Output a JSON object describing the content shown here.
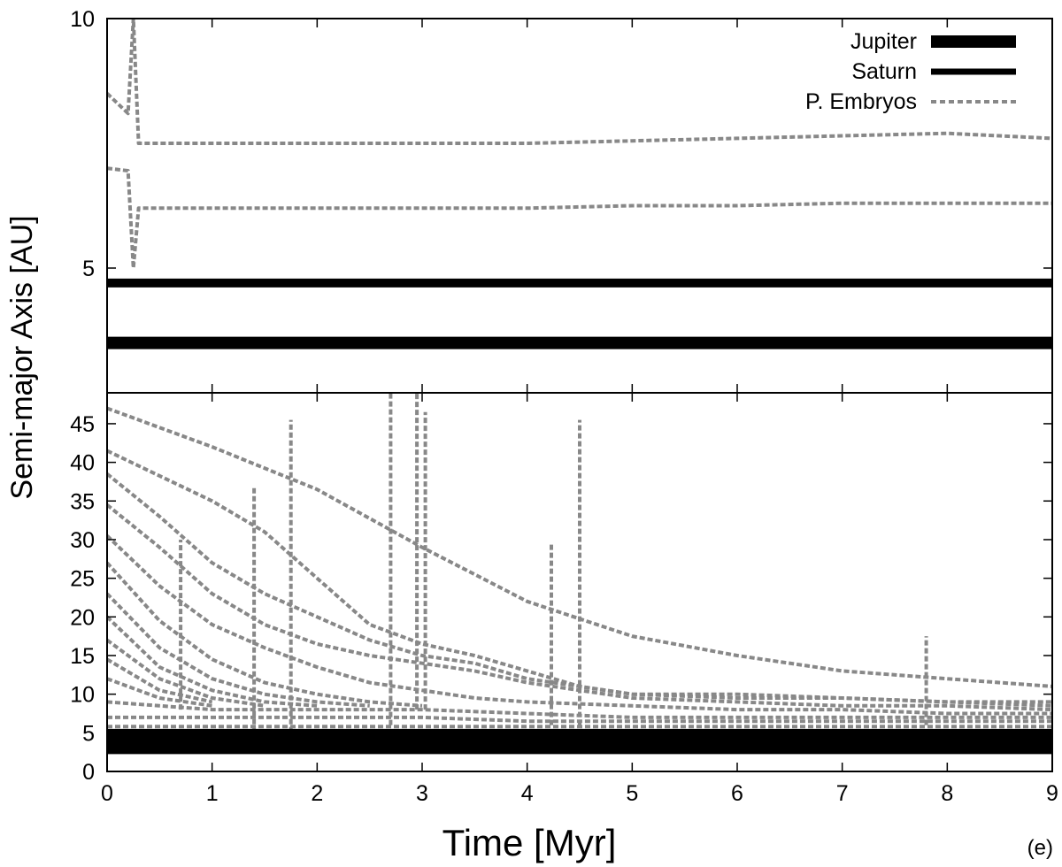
{
  "chart_data": {
    "type": "line",
    "panel_label": "(e)",
    "xlabel": "Time [Myr]",
    "ylabel": "Semi-major Axis [AU]",
    "xlim": [
      0,
      9
    ],
    "xticks": [
      0,
      1,
      2,
      3,
      4,
      5,
      6,
      7,
      8,
      9
    ],
    "legend": {
      "placement": "top-right",
      "entries": [
        {
          "name": "Jupiter",
          "style": "thick-solid",
          "color": "#000000"
        },
        {
          "name": "Saturn",
          "style": "solid",
          "color": "#000000"
        },
        {
          "name": "P. Embryos",
          "style": "dashed",
          "color": "#888888"
        }
      ]
    },
    "panels": [
      {
        "id": "top",
        "ylim": [
          2.5,
          10
        ],
        "yticks": [
          5,
          10
        ],
        "series": [
          {
            "name": "Jupiter",
            "color": "#000000",
            "x": [
              0,
              9
            ],
            "y": [
              3.5,
              3.5
            ]
          },
          {
            "name": "Saturn",
            "color": "#000000",
            "x": [
              0,
              9
            ],
            "y": [
              4.7,
              4.7
            ]
          },
          {
            "name": "P. Embryos",
            "color": "#888888",
            "x": [
              0,
              0.2,
              0.25,
              0.3,
              1,
              2,
              3,
              4,
              5,
              6,
              7,
              8,
              9
            ],
            "y": [
              8.5,
              8.1,
              10,
              7.5,
              7.5,
              7.5,
              7.5,
              7.5,
              7.55,
              7.6,
              7.65,
              7.7,
              7.6
            ]
          },
          {
            "name": "P. Embryos",
            "color": "#888888",
            "x": [
              0,
              0.2,
              0.25,
              0.3,
              1,
              2,
              3,
              4,
              5,
              6,
              7,
              8,
              9
            ],
            "y": [
              7,
              6.95,
              5,
              6.2,
              6.2,
              6.2,
              6.2,
              6.2,
              6.25,
              6.25,
              6.3,
              6.3,
              6.3
            ]
          }
        ]
      },
      {
        "id": "bottom",
        "ylim": [
          0,
          49
        ],
        "yticks": [
          0,
          5,
          10,
          15,
          20,
          25,
          30,
          35,
          40,
          45
        ],
        "series": [
          {
            "name": "Jupiter",
            "color": "#000000",
            "x": [
              0,
              9
            ],
            "y": [
              3.5,
              3.5
            ]
          },
          {
            "name": "Saturn",
            "color": "#000000",
            "x": [
              0,
              9
            ],
            "y": [
              4.7,
              4.7
            ]
          },
          {
            "name": "P. Embryos",
            "color": "#888888",
            "x": [
              0,
              1,
              2,
              3,
              4,
              5,
              6,
              7,
              8,
              9
            ],
            "y": [
              47,
              42,
              36.5,
              29,
              22,
              17.5,
              15,
              13,
              12,
              11
            ]
          },
          {
            "name": "P. Embryos",
            "color": "#888888",
            "x": [
              0,
              1,
              1.5,
              2,
              2.5,
              3,
              3.5,
              4,
              4.5,
              5,
              6,
              7,
              8,
              9
            ],
            "y": [
              41.5,
              35,
              31,
              25,
              19,
              16.5,
              15,
              13,
              11,
              10,
              9.5,
              9.5,
              9,
              9
            ]
          },
          {
            "name": "P. Embryos",
            "color": "#888888",
            "x": [
              0,
              0.5,
              1,
              1.5,
              2,
              2.5,
              3,
              3.5,
              4,
              5,
              6,
              7,
              8,
              9
            ],
            "y": [
              38.5,
              33,
              27,
              23,
              20,
              17,
              15,
              14,
              12,
              10,
              10,
              9.5,
              9,
              8.5
            ]
          },
          {
            "name": "P. Embryos",
            "color": "#888888",
            "x": [
              0,
              0.5,
              1,
              1.5,
              2,
              2.5,
              3,
              3.5,
              4,
              5,
              6,
              7,
              8,
              9
            ],
            "y": [
              34.5,
              29,
              23,
              19,
              16.5,
              15,
              14,
              13,
              11.5,
              9.5,
              9,
              8.5,
              8.5,
              8
            ]
          },
          {
            "name": "P. Embryos",
            "color": "#888888",
            "x": [
              0,
              0.5,
              1,
              1.5,
              2,
              2.5,
              3,
              3.5,
              4,
              5,
              6,
              7,
              8,
              9
            ],
            "y": [
              30.5,
              24,
              19,
              16,
              13.5,
              11.5,
              10.5,
              9.5,
              9,
              8.5,
              8,
              8,
              7.5,
              7.5
            ]
          },
          {
            "name": "P. Embryos",
            "color": "#888888",
            "x": [
              0,
              0.5,
              1,
              1.5,
              2,
              2.5,
              3
            ],
            "y": [
              27,
              19.5,
              14.5,
              11.5,
              10,
              9,
              8.5
            ]
          },
          {
            "name": "P. Embryos",
            "color": "#888888",
            "x": [
              0,
              0.5,
              1,
              1.5,
              2,
              2.5
            ],
            "y": [
              23,
              16,
              12,
              10,
              9,
              8.5
            ]
          },
          {
            "name": "P. Embryos",
            "color": "#888888",
            "x": [
              0,
              0.5,
              1,
              1.5,
              2
            ],
            "y": [
              20,
              13.5,
              10.5,
              9,
              8.5
            ]
          },
          {
            "name": "P. Embryos",
            "color": "#888888",
            "x": [
              0,
              0.5,
              1,
              1.5
            ],
            "y": [
              17,
              12,
              9.5,
              8.5
            ]
          },
          {
            "name": "P. Embryos",
            "color": "#888888",
            "x": [
              0,
              0.5,
              1
            ],
            "y": [
              14.5,
              10.5,
              9
            ]
          },
          {
            "name": "P. Embryos",
            "color": "#888888",
            "x": [
              0,
              0.5,
              1
            ],
            "y": [
              12,
              9.5,
              8.5
            ]
          },
          {
            "name": "P. Embryos",
            "color": "#888888",
            "x": [
              0,
              0.5,
              1,
              2,
              3,
              4,
              5,
              6,
              7,
              8,
              9
            ],
            "y": [
              9,
              8.5,
              8,
              8,
              8,
              7.5,
              7,
              7,
              7,
              7,
              7
            ]
          },
          {
            "name": "P. Embryos",
            "color": "#888888",
            "x": [
              0,
              1,
              2,
              3,
              4,
              5,
              6,
              7,
              8,
              9
            ],
            "y": [
              7,
              7,
              7,
              7,
              6.5,
              6.5,
              6.5,
              6.5,
              6.5,
              6.5
            ]
          },
          {
            "name": "P. Embryos",
            "color": "#888888",
            "x": [
              0,
              9
            ],
            "y": [
              5.8,
              5.8
            ]
          },
          {
            "name": "P. Embryos",
            "color": "#888888",
            "x": [
              0.7,
              0.7
            ],
            "y": [
              8,
              30
            ]
          },
          {
            "name": "P. Embryos",
            "color": "#888888",
            "x": [
              1.4,
              1.4
            ],
            "y": [
              3,
              37
            ]
          },
          {
            "name": "P. Embryos",
            "color": "#888888",
            "x": [
              1.75,
              1.75
            ],
            "y": [
              3,
              45.5
            ]
          },
          {
            "name": "P. Embryos",
            "color": "#888888",
            "x": [
              2.7,
              2.7
            ],
            "y": [
              6,
              49
            ]
          },
          {
            "name": "P. Embryos",
            "color": "#888888",
            "x": [
              2.95,
              2.95
            ],
            "y": [
              8,
              49
            ]
          },
          {
            "name": "P. Embryos",
            "color": "#888888",
            "x": [
              3.03,
              3.03
            ],
            "y": [
              8,
              46.5
            ]
          },
          {
            "name": "P. Embryos",
            "color": "#888888",
            "x": [
              4.23,
              4.23
            ],
            "y": [
              6,
              29.5
            ]
          },
          {
            "name": "P. Embryos",
            "color": "#888888",
            "x": [
              4.5,
              4.5
            ],
            "y": [
              6,
              45.5
            ]
          },
          {
            "name": "P. Embryos",
            "color": "#888888",
            "x": [
              7.8,
              7.8
            ],
            "y": [
              6,
              17.5
            ]
          }
        ]
      }
    ]
  }
}
